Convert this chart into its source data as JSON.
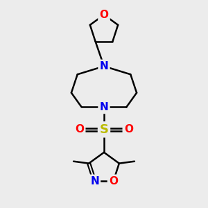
{
  "bg_color": "#ececec",
  "bond_color": "#000000",
  "bond_width": 1.8,
  "atom_colors": {
    "N": "#0000ee",
    "O": "#ff0000",
    "S": "#bbbb00",
    "C": "#000000"
  },
  "font_size": 11,
  "figsize": [
    3.0,
    3.0
  ],
  "dpi": 100,
  "xlim": [
    0,
    10
  ],
  "ylim": [
    0,
    10
  ]
}
